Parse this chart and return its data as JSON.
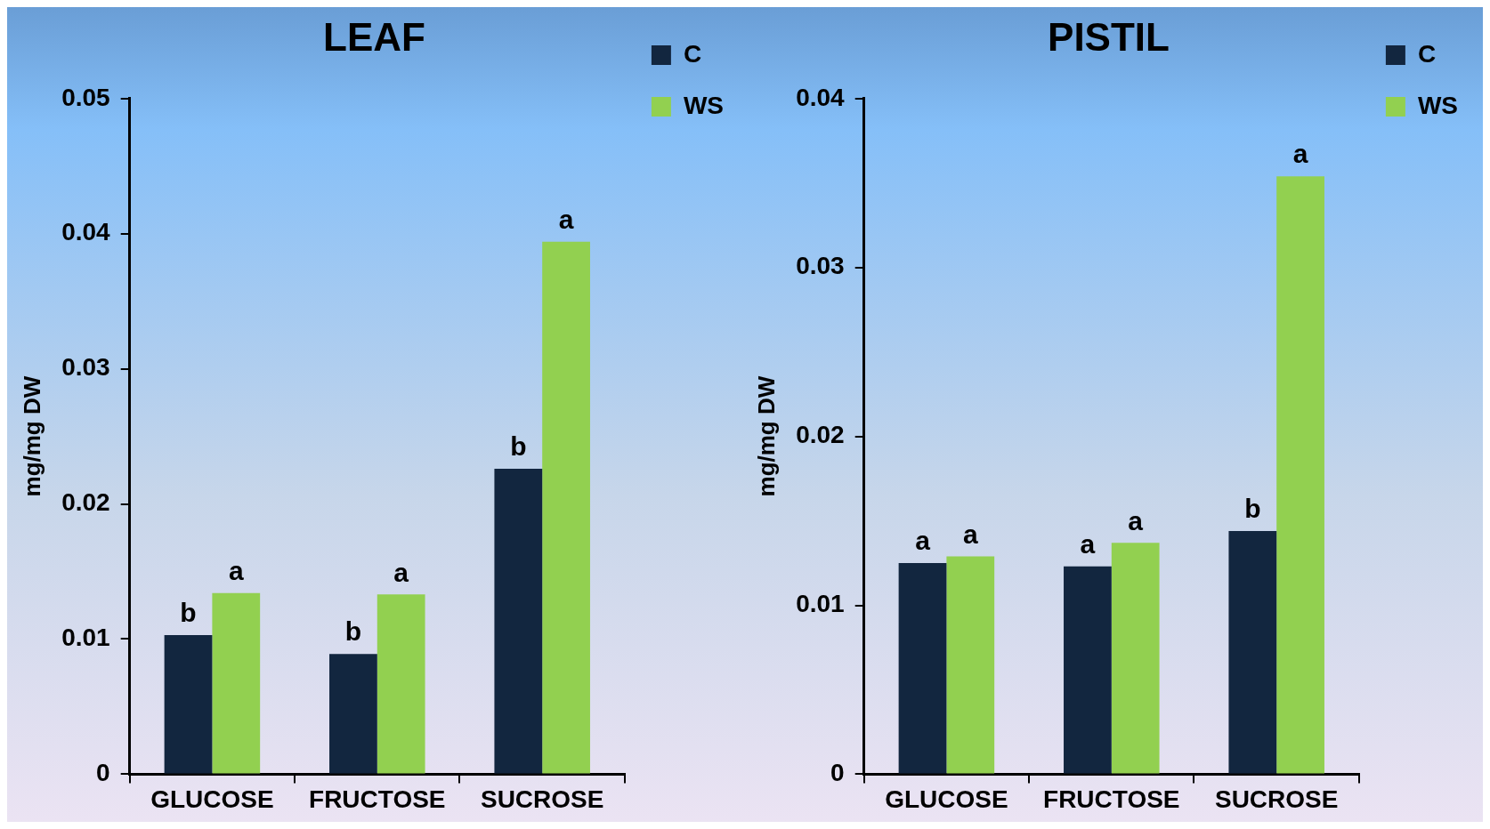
{
  "chart_data": [
    {
      "type": "bar",
      "title": "LEAF",
      "ylabel": "mg/mg DW",
      "categories": [
        "GLUCOSE",
        "FRUCTOSE",
        "SUCROSE"
      ],
      "series": [
        {
          "name": "C",
          "color": "#12263f",
          "values": [
            0.0103,
            0.0089,
            0.0226
          ],
          "value_labels": [
            "b",
            "b",
            "b"
          ]
        },
        {
          "name": "WS",
          "color": "#92d050",
          "values": [
            0.0134,
            0.0133,
            0.0394
          ],
          "value_labels": [
            "a",
            "a",
            "a"
          ]
        }
      ],
      "ylim": [
        0,
        0.05
      ],
      "yticks": [
        0,
        0.01,
        0.02,
        0.03,
        0.04,
        0.05
      ],
      "legend": "top right"
    },
    {
      "type": "bar",
      "title": "PISTIL",
      "ylabel": "mg/mg DW",
      "categories": [
        "GLUCOSE",
        "FRUCTOSE",
        "SUCROSE"
      ],
      "series": [
        {
          "name": "C",
          "color": "#12263f",
          "values": [
            0.0125,
            0.0123,
            0.0144
          ],
          "value_labels": [
            "a",
            "a",
            "b"
          ]
        },
        {
          "name": "WS",
          "color": "#92d050",
          "values": [
            0.0129,
            0.0137,
            0.0354
          ],
          "value_labels": [
            "a",
            "a",
            "a"
          ]
        }
      ],
      "ylim": [
        0,
        0.04
      ],
      "yticks": [
        0,
        0.01,
        0.02,
        0.03,
        0.04
      ],
      "legend": "top right"
    }
  ]
}
